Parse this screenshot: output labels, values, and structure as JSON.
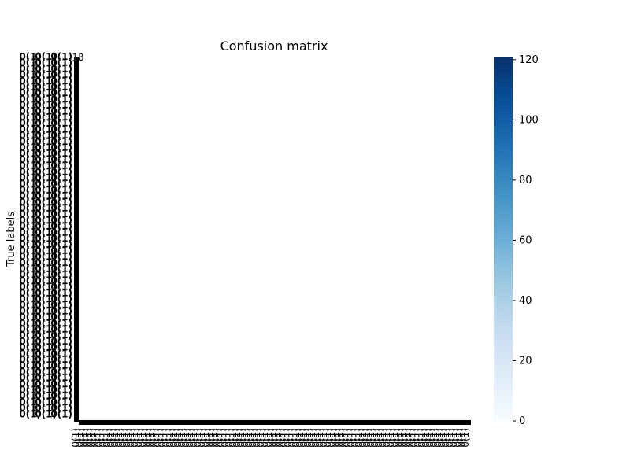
{
  "chart_data": {
    "type": "heatmap",
    "title": "Confusion matrix",
    "xlabel": "",
    "ylabel": "True labels",
    "tick_label_text": "0(1)",
    "cells": [
      {
        "row": 0,
        "col": 0,
        "value": 13,
        "label": "13"
      },
      {
        "row": 0,
        "col": 0,
        "value": 8,
        "label": "8"
      }
    ],
    "colorbar": {
      "min": 0,
      "max": 121,
      "ticks": [
        0,
        20,
        40,
        60,
        80,
        100,
        120
      ],
      "colormap": [
        "#f7fbff",
        "#deebf7",
        "#c6dbef",
        "#9ecae1",
        "#6baed6",
        "#4292c6",
        "#2171b5",
        "#08519c",
        "#08306b"
      ]
    },
    "grid": false,
    "legend": "none"
  }
}
